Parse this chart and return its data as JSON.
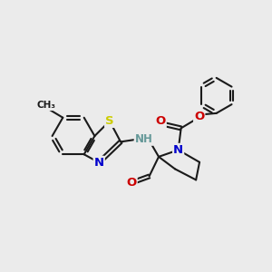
{
  "background_color": "#ebebeb",
  "bond_color": "#1a1a1a",
  "bond_width": 1.5,
  "atom_colors": {
    "N": "#0000cc",
    "O": "#cc0000",
    "S": "#cccc00",
    "H": "#669999",
    "C": "#1a1a1a"
  },
  "font_size": 8.5,
  "fig_width": 3.0,
  "fig_height": 3.0
}
